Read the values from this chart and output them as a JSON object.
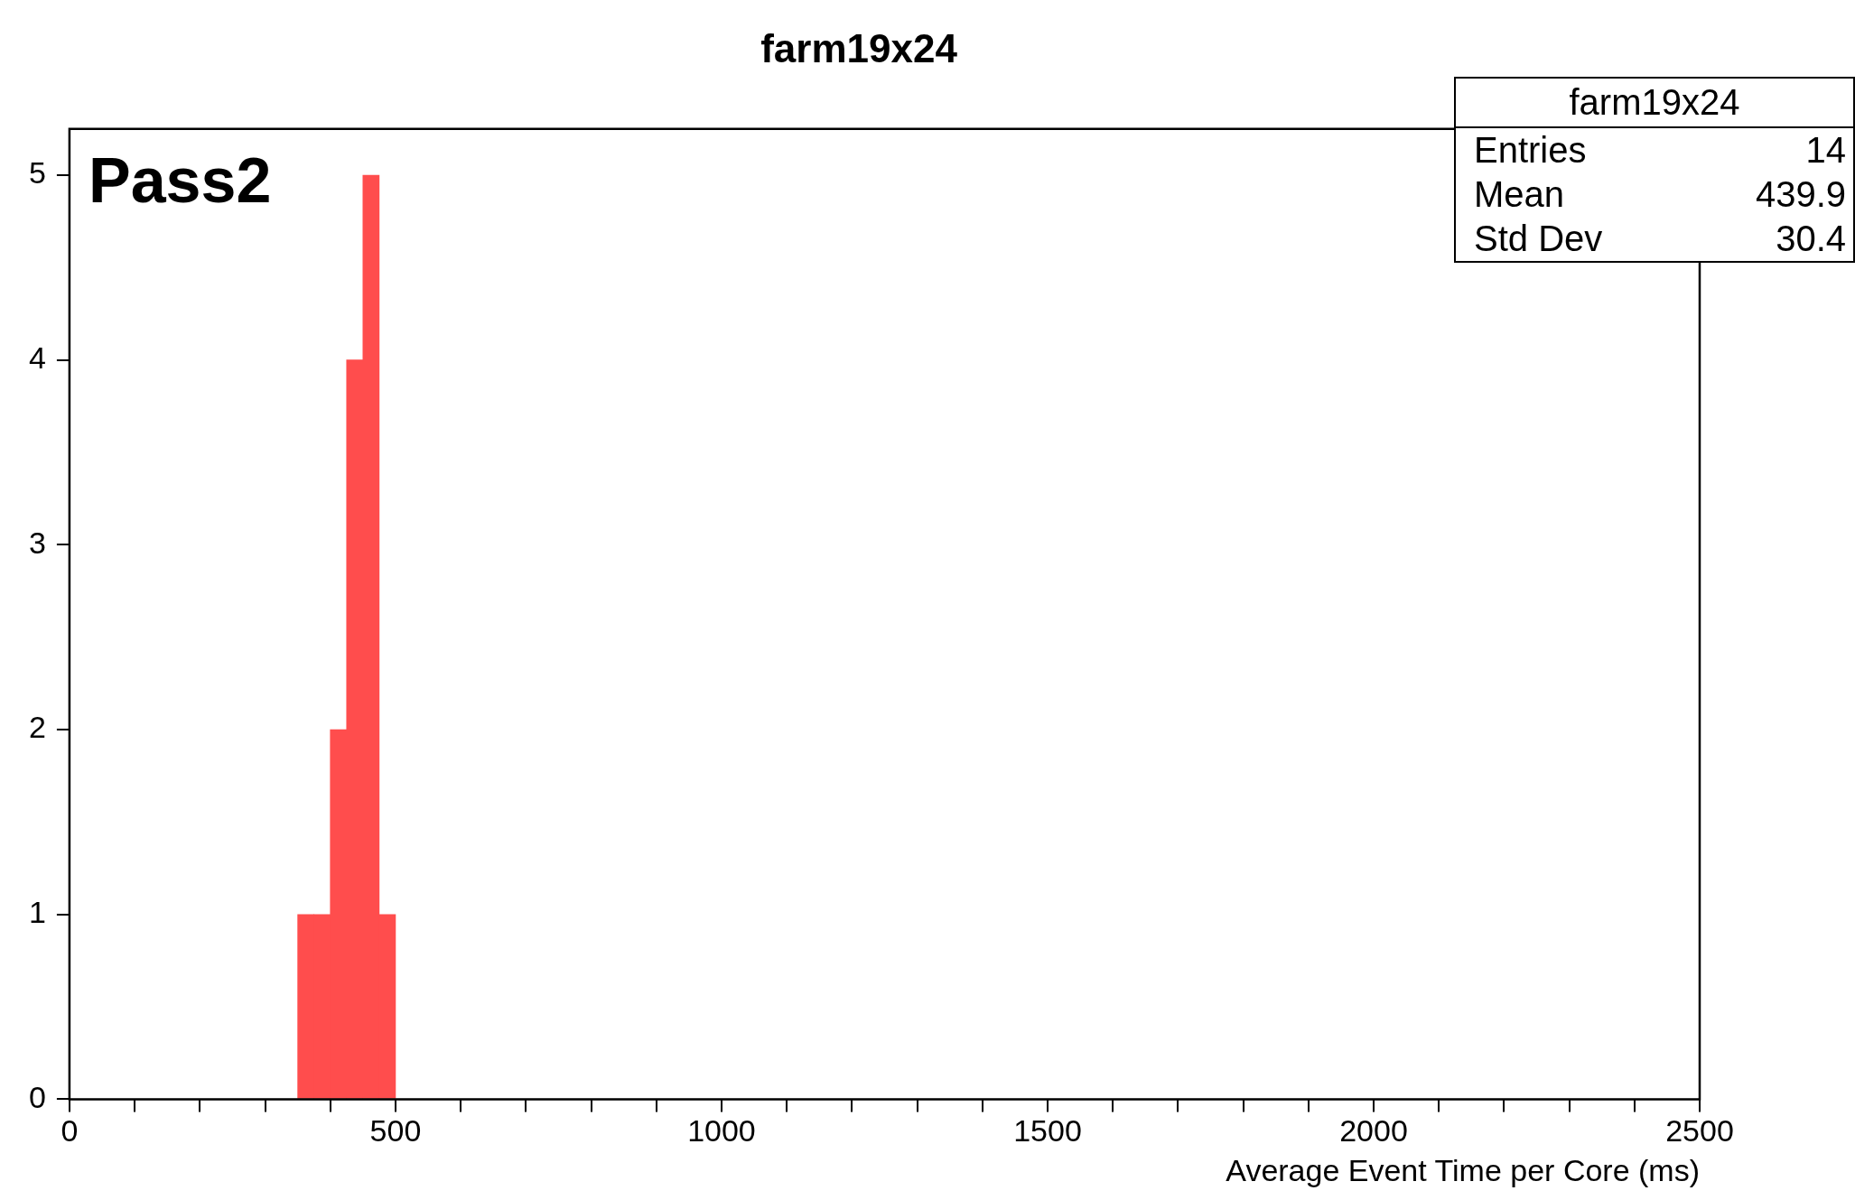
{
  "chart_data": {
    "type": "histogram",
    "title": "farm19x24",
    "xlabel": "Average Event Time per Core (ms)",
    "bins": [
      350,
      375,
      400,
      425,
      450,
      475,
      500
    ],
    "values": [
      1,
      1,
      2,
      4,
      5,
      1
    ],
    "color": "#ff4d4d",
    "xlim": [
      0,
      2500
    ],
    "xticks": [
      0,
      {
        "value": 100,
        "label": null
      },
      {
        "value": 200,
        "label": null
      },
      {
        "value": 300,
        "label": null
      },
      {
        "value": 400,
        "label": null
      },
      500,
      {
        "value": 600,
        "label": null
      },
      {
        "value": 700,
        "label": null
      },
      {
        "value": 800,
        "label": null
      },
      {
        "value": 900,
        "label": null
      },
      1000,
      {
        "value": 1100,
        "label": null
      },
      {
        "value": 1200,
        "label": null
      },
      {
        "value": 1300,
        "label": null
      },
      {
        "value": 1400,
        "label": null
      },
      1500,
      {
        "value": 1600,
        "label": null
      },
      {
        "value": 1700,
        "label": null
      },
      {
        "value": 1800,
        "label": null
      },
      {
        "value": 1900,
        "label": null
      },
      2000,
      {
        "value": 2100,
        "label": null
      },
      {
        "value": 2200,
        "label": null
      },
      {
        "value": 2300,
        "label": null
      },
      {
        "value": 2400,
        "label": null
      },
      2500
    ],
    "ylim": [
      0,
      5.25
    ],
    "yticks": [
      0,
      1,
      2,
      3,
      4,
      5
    ],
    "annotations": [
      "Pass2",
      "farm19x24",
      "Entries",
      "14",
      "Mean",
      "439.9",
      "Std Dev",
      "30.4"
    ]
  }
}
